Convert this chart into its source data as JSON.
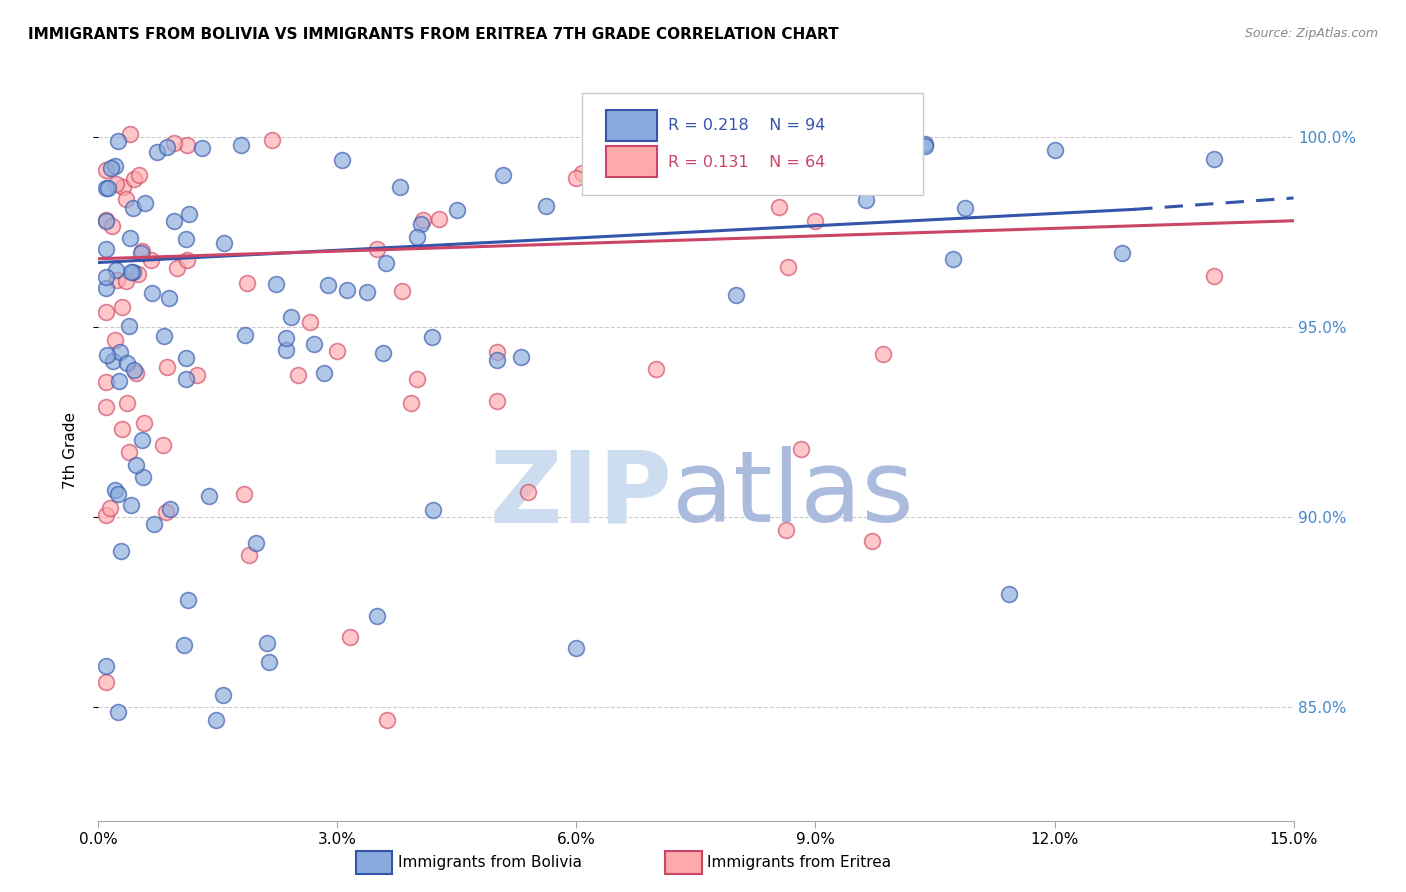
{
  "title": "IMMIGRANTS FROM BOLIVIA VS IMMIGRANTS FROM ERITREA 7TH GRADE CORRELATION CHART",
  "source": "Source: ZipAtlas.com",
  "ylabel": "7th Grade",
  "ytick_labels": [
    "85.0%",
    "90.0%",
    "95.0%",
    "100.0%"
  ],
  "ytick_values": [
    0.85,
    0.9,
    0.95,
    1.0
  ],
  "xtick_labels": [
    "0.0%",
    "3.0%",
    "6.0%",
    "9.0%",
    "12.0%",
    "15.0%"
  ],
  "xtick_values": [
    0.0,
    0.03,
    0.06,
    0.09,
    0.12,
    0.15
  ],
  "xlim": [
    0.0,
    0.15
  ],
  "ylim": [
    0.82,
    1.015
  ],
  "legend_blue_R": "0.218",
  "legend_blue_N": "94",
  "legend_pink_R": "0.131",
  "legend_pink_N": "64",
  "blue_face_color": "#88AADD",
  "pink_face_color": "#FFAAAA",
  "blue_edge_color": "#3355AA",
  "pink_edge_color": "#CC4466",
  "blue_line_color": "#3355AA",
  "pink_line_color": "#CC4466",
  "watermark_zip_color": "#CCDDF0",
  "watermark_atlas_color": "#AABBDD",
  "grid_color": "#CCCCCC",
  "right_axis_color": "#4488CC"
}
